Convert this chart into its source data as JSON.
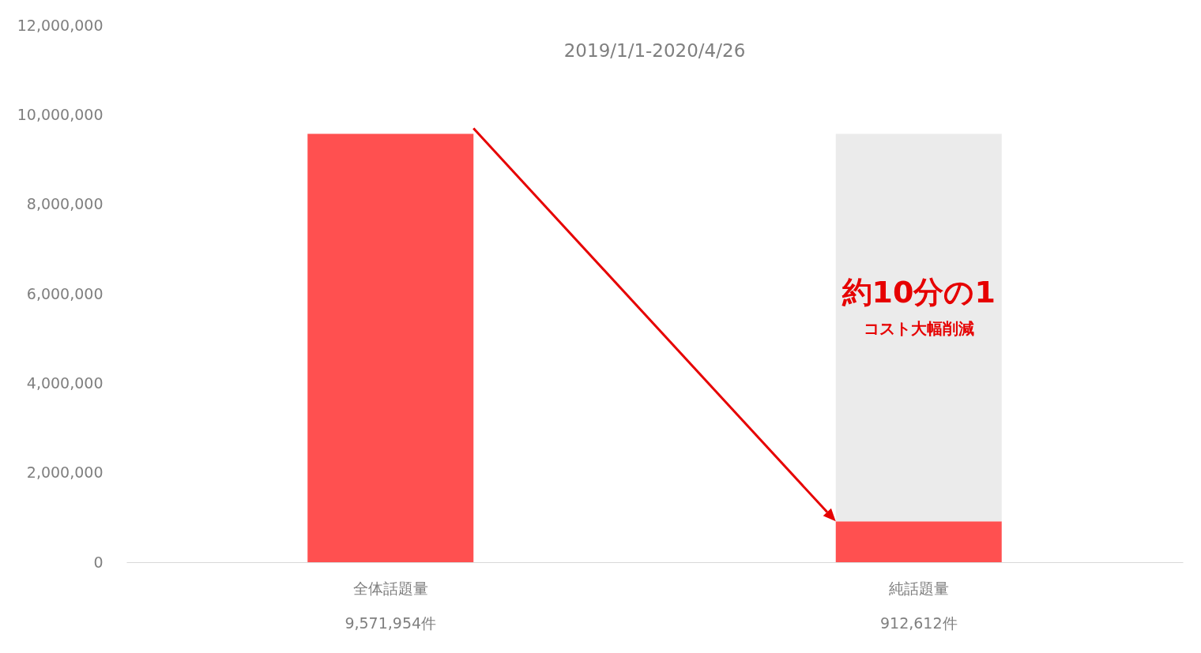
{
  "chart_data": {
    "type": "bar",
    "title": "2019/1/1-2020/4/26",
    "categories": [
      "全体話題量",
      "純話題量"
    ],
    "stacked": true,
    "series": [
      {
        "color": "#ff5050",
        "values": [
          9571954,
          912612
        ],
        "value_labels": [
          "9,571,954件",
          "912,612件"
        ]
      },
      {
        "color": "#ebebeb",
        "values": [
          null,
          8659342
        ]
      }
    ],
    "ylim": [
      0,
      12000000
    ],
    "yticks": [
      0,
      {
        "value": 2000000,
        "label": "2,000,000"
      },
      {
        "value": 4000000,
        "label": "4,000,000"
      },
      {
        "value": 6000000,
        "label": "6,000,000"
      },
      {
        "value": 8000000,
        "label": "8,000,000"
      },
      {
        "value": 10000000,
        "label": "10,000,000"
      },
      {
        "value": 12000000,
        "label": "12,000,000"
      }
    ],
    "grid": false,
    "annotations": [
      "約10分の1",
      "コスト大幅削減"
    ]
  }
}
